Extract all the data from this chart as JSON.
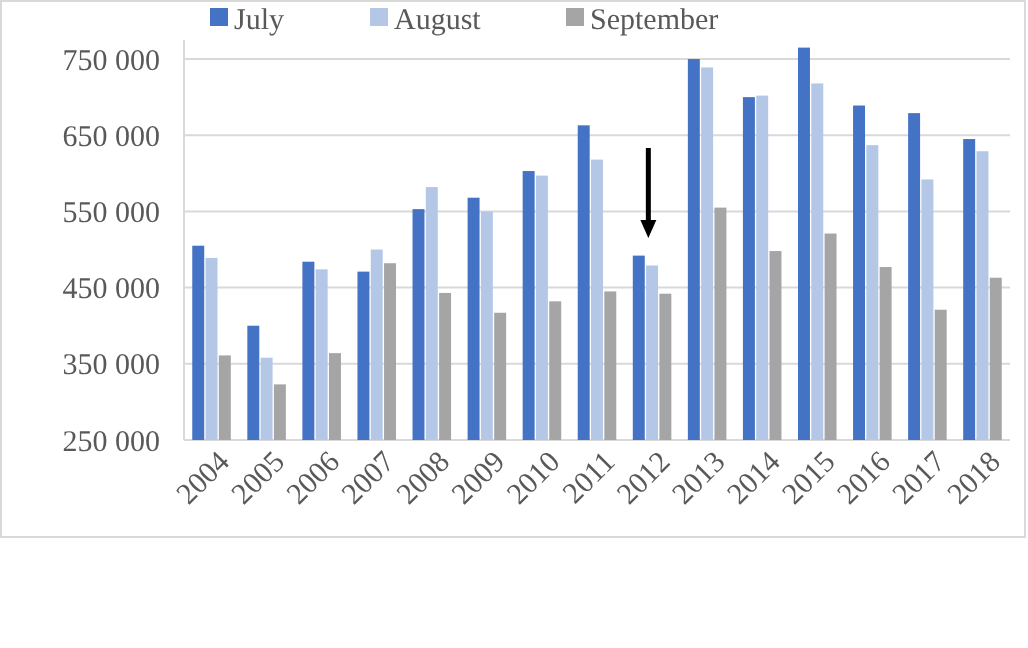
{
  "chart_data": {
    "type": "bar",
    "categories": [
      "2004",
      "2005",
      "2006",
      "2007",
      "2008",
      "2009",
      "2010",
      "2011",
      "2012",
      "2013",
      "2014",
      "2015",
      "2016",
      "2017",
      "2018"
    ],
    "series": [
      {
        "name": "July",
        "color": "#4472c4",
        "values": [
          505000,
          400000,
          484000,
          471000,
          553000,
          568000,
          603000,
          663000,
          492000,
          750000,
          700000,
          765000,
          689000,
          679000,
          645000
        ]
      },
      {
        "name": "August",
        "color": "#b4c7e7",
        "values": [
          489000,
          358000,
          474000,
          500000,
          582000,
          550000,
          597000,
          618000,
          479000,
          739000,
          702000,
          718000,
          637000,
          592000,
          629000
        ]
      },
      {
        "name": "September",
        "color": "#a5a5a5",
        "values": [
          361000,
          323000,
          364000,
          482000,
          443000,
          417000,
          432000,
          445000,
          442000,
          555000,
          498000,
          521000,
          477000,
          421000,
          463000
        ]
      }
    ],
    "ylim": [
      250000,
      775000
    ],
    "yticks": [
      {
        "value": 250000,
        "label": "250 000"
      },
      {
        "value": 350000,
        "label": "350 000"
      },
      {
        "value": 450000,
        "label": "450 000"
      },
      {
        "value": 550000,
        "label": "550 000"
      },
      {
        "value": 650000,
        "label": "650 000"
      },
      {
        "value": 750000,
        "label": "750 000"
      }
    ],
    "grid": "y",
    "legend": "top"
  }
}
